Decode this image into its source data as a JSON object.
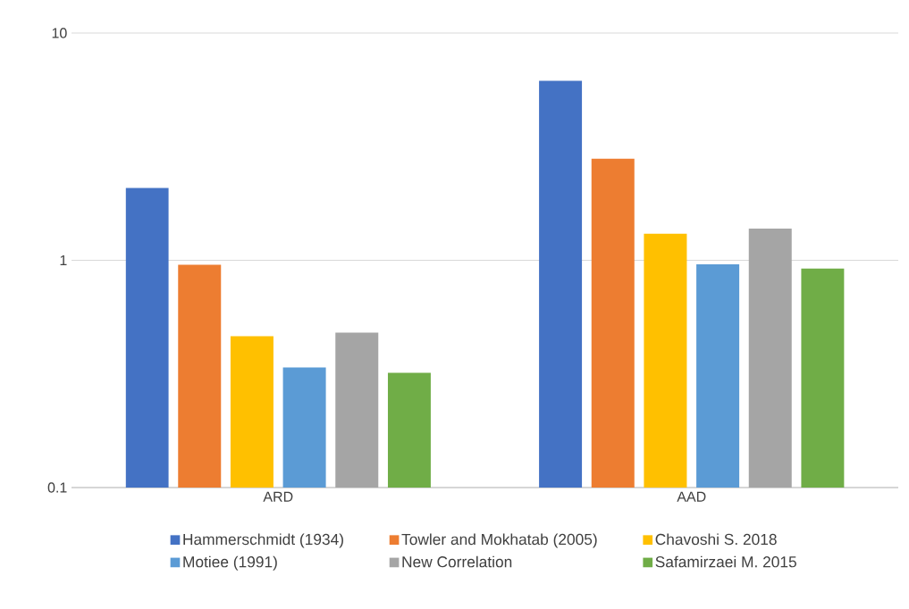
{
  "chart_data": {
    "type": "bar",
    "categories": [
      "ARD",
      "AAD"
    ],
    "series": [
      {
        "name": "Hammerschmidt (1934)",
        "color": "#4472c4",
        "values": [
          2.08,
          6.16
        ]
      },
      {
        "name": "Towler and Mokhatab (2005)",
        "color": "#ed7d31",
        "values": [
          0.955,
          2.8
        ]
      },
      {
        "name": "Chavoshi S. 2018",
        "color": "#ffc000",
        "values": [
          0.463,
          1.31
        ]
      },
      {
        "name": "Motiee (1991)",
        "color": "#5b9bd5",
        "values": [
          0.338,
          0.96
        ]
      },
      {
        "name": "New Correlation",
        "color": "#a5a5a5",
        "values": [
          0.481,
          1.38
        ]
      },
      {
        "name": "Safamirzaei M. 2015",
        "color": "#70ad47",
        "values": [
          0.32,
          0.92
        ]
      }
    ],
    "log": true,
    "ylim": [
      0.1,
      10
    ],
    "yticks": [
      0.1,
      1,
      10
    ],
    "grid": "y",
    "legend": "bottom"
  }
}
